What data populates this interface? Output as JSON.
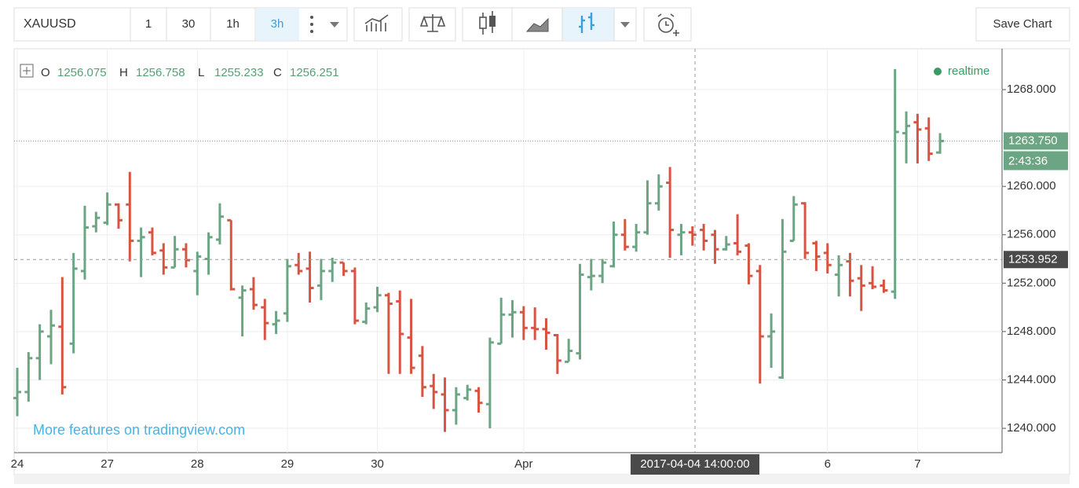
{
  "toolbar": {
    "symbol": "XAUUSD",
    "intervals": [
      "1",
      "30",
      "1h",
      "3h"
    ],
    "active_interval": 3,
    "save": "Save Chart"
  },
  "chart_data": {
    "type": "ohlc",
    "legend": [
      {
        "label": "O",
        "value": 1256.075
      },
      {
        "label": "H",
        "value": 1256.758
      },
      {
        "label": "L",
        "value": 1255.233
      },
      {
        "label": "C",
        "value": 1256.251
      }
    ],
    "status": "realtime",
    "watermark": "More features on tradingview.com",
    "categories": [
      "24",
      null,
      null,
      null,
      null,
      null,
      null,
      null,
      "27",
      null,
      null,
      null,
      null,
      null,
      null,
      null,
      "28",
      null,
      null,
      null,
      null,
      null,
      null,
      null,
      "29",
      null,
      null,
      null,
      null,
      null,
      null,
      null,
      "30",
      null,
      null,
      null,
      null,
      null,
      null,
      null,
      null,
      null,
      null,
      null,
      null,
      "Apr",
      null,
      null,
      null,
      null,
      null,
      null,
      null,
      null,
      null,
      null,
      null,
      null,
      null,
      null,
      null,
      null,
      null,
      null,
      null,
      null,
      null,
      null,
      null,
      null,
      null,
      null,
      "6",
      null,
      null,
      null,
      null,
      null,
      null,
      null,
      "7",
      null,
      null
    ],
    "open": [
      1242.5,
      1243,
      1245.8,
      1247.6,
      1248.4,
      1247,
      1253,
      1256.7,
      1257,
      1258.5,
      1258.5,
      1255.5,
      1256.2,
      1254.7,
      1253.3,
      1254.8,
      1253,
      1254,
      1255.6,
      1257.2,
      1250.8,
      1251.5,
      1250,
      1248.6,
      1249.5,
      1253.5,
      1253.2,
      1251.8,
      1253,
      1253.7,
      1253,
      1248.8,
      1250,
      1251,
      1250.5,
      1247.5,
      1246,
      1243.5,
      1242.8,
      1241.5,
      1242.5,
      1243.1,
      1242,
      1247,
      1249.4,
      1249.6,
      1248.3,
      1248.2,
      1247.7,
      1245.5,
      1246.2,
      1252.5,
      1252.6,
      1253.4,
      1256,
      1255,
      1256.2,
      1258.6,
      1260.3,
      1256,
      1256.2,
      1256.4,
      1256,
      1254.8,
      1255.3,
      1255.1,
      1253,
      1247.6,
      1244.2,
      1255.5,
      1258.6,
      1255.3,
      1254.5,
      1252.7,
      1253.8,
      1252.4,
      1252,
      1251.8,
      1251.3,
      1264.4,
      1265.3,
      1264.8,
      1262.8
    ],
    "high": [
      1245,
      1246.3,
      1248.6,
      1249.8,
      1252.5,
      1254.5,
      1258.4,
      1257.9,
      1259.5,
      1258.6,
      1261.2,
      1256.6,
      1256.6,
      1255.3,
      1255.9,
      1255.3,
      1254.6,
      1256.2,
      1258.6,
      1257.2,
      1251.8,
      1252.5,
      1250.7,
      1249.7,
      1254,
      1254.5,
      1254.6,
      1254,
      1254.1,
      1253.7,
      1253.3,
      1250.4,
      1251.7,
      1251.2,
      1251.4,
      1250.7,
      1246.8,
      1244.5,
      1244.2,
      1243.4,
      1243.6,
      1243.4,
      1247.5,
      1250.8,
      1250.6,
      1250.1,
      1250,
      1249.1,
      1247.8,
      1247.4,
      1253.6,
      1254,
      1254,
      1257.1,
      1257.3,
      1256.9,
      1260.5,
      1261,
      1261.6,
      1256.9,
      1256.7,
      1256.9,
      1256.4,
      1255.9,
      1257.7,
      1255.3,
      1253.5,
      1249.5,
      1257.3,
      1259.2,
      1258.7,
      1255.5,
      1255.3,
      1254.3,
      1254.5,
      1253.5,
      1253.4,
      1252.3,
      1269.7,
      1266.2,
      1266,
      1265.7,
      1264.4
    ],
    "low": [
      1241,
      1242.2,
      1244,
      1245.3,
      1242.8,
      1246.2,
      1252.3,
      1256.2,
      1256.8,
      1256.5,
      1253.8,
      1252.5,
      1254.3,
      1252.7,
      1253.3,
      1253.3,
      1251,
      1252.7,
      1255.2,
      1251.4,
      1247.6,
      1249.8,
      1247.3,
      1247.8,
      1248.8,
      1252.7,
      1250.4,
      1250.6,
      1252.1,
      1252.6,
      1248.6,
      1248.6,
      1249.6,
      1244.5,
      1244.5,
      1244.5,
      1242.6,
      1241.6,
      1239.7,
      1240.3,
      1242.3,
      1241.3,
      1240,
      1247,
      1247.5,
      1247.3,
      1247.3,
      1246.5,
      1244.5,
      1245.5,
      1245.7,
      1251.4,
      1252,
      1253.3,
      1254.7,
      1254.6,
      1256,
      1258,
      1254.1,
      1254.3,
      1255.1,
      1254.7,
      1253.6,
      1254.7,
      1254.3,
      1251.9,
      1243.7,
      1245,
      1244.1,
      1255.5,
      1254,
      1253,
      1252.8,
      1250.9,
      1250.9,
      1249.7,
      1251.5,
      1251.2,
      1250.7,
      1261.9,
      1261.9,
      1262.1,
      1262.7
    ],
    "close": [
      1243,
      1245.8,
      1248,
      1248.5,
      1243.4,
      1253.2,
      1256.6,
      1257.4,
      1258.5,
      1257.2,
      1255.5,
      1255.8,
      1254.5,
      1253.3,
      1254.8,
      1253.9,
      1254.2,
      1255.8,
      1257.5,
      1251.5,
      1251.4,
      1250.2,
      1248.7,
      1248.9,
      1253.4,
      1253,
      1251.6,
      1253,
      1253.7,
      1253,
      1248.9,
      1249.9,
      1251,
      1250.3,
      1247.8,
      1245,
      1243.4,
      1243,
      1241.5,
      1242.8,
      1243.2,
      1242.1,
      1247.1,
      1249.4,
      1249.6,
      1248.3,
      1248.2,
      1247.9,
      1245.6,
      1246.4,
      1252.7,
      1252.6,
      1253.7,
      1256,
      1255,
      1256.2,
      1258.6,
      1260,
      1256.4,
      1256.2,
      1256,
      1255.5,
      1254.8,
      1255.2,
      1254.6,
      1252.6,
      1247.6,
      1248,
      1254.6,
      1258.5,
      1254.5,
      1254.2,
      1253.5,
      1253.5,
      1252.2,
      1251.8,
      1251.7,
      1251.4,
      1264.5,
      1265,
      1264.7,
      1262.7,
      1263.75
    ],
    "up_color": "#6ba583",
    "down_color": "#d75442",
    "ylim": [
      1237.99,
      1271.38
    ],
    "yticks": [
      {
        "value": 1240,
        "label": "1240.000"
      },
      {
        "value": 1244,
        "label": "1244.000"
      },
      {
        "value": 1248,
        "label": "1248.000"
      },
      {
        "value": 1252,
        "label": "1252.000"
      },
      {
        "value": 1256,
        "label": "1256.000"
      },
      {
        "value": 1260,
        "label": "1260.000"
      },
      {
        "value": 1268,
        "label": "1268.000"
      }
    ],
    "grid": true,
    "last_price": {
      "value": 1263.75,
      "label": "1263.750"
    },
    "countdown": "2:43:36",
    "crosshair": {
      "value": 1253.952,
      "label": "1253.952",
      "time": "2017-04-04 14:00:00"
    }
  }
}
